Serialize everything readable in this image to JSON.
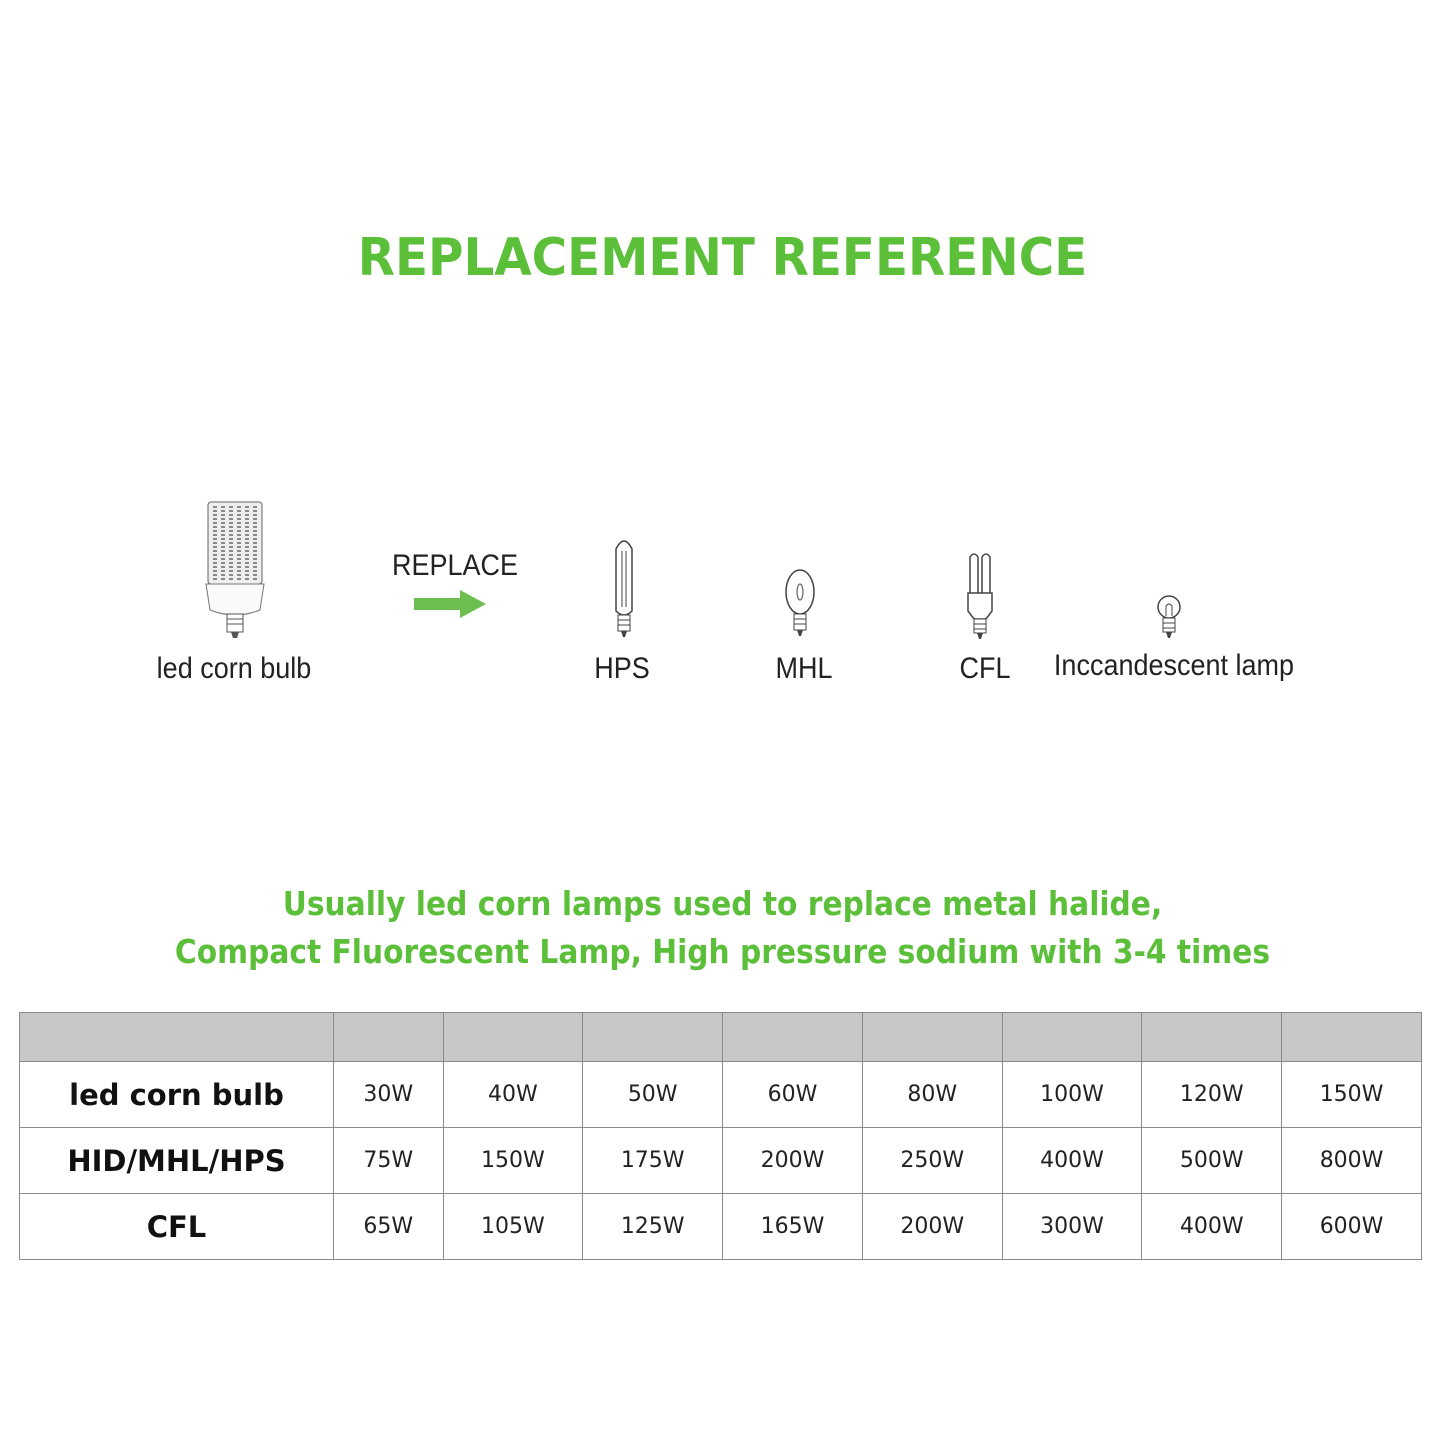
{
  "title": "REPLACEMENT REFERENCE",
  "colors": {
    "accent": "#5bbf3a",
    "header_bg": "#c8c8c8"
  },
  "diagram": {
    "source": {
      "label": "led corn bulb",
      "icon": "led-corn-bulb-icon"
    },
    "action": {
      "label": "REPLACE",
      "icon": "arrow-right-icon"
    },
    "targets": [
      {
        "label": "HPS",
        "icon": "hps-lamp-icon"
      },
      {
        "label": "MHL",
        "icon": "mhl-lamp-icon"
      },
      {
        "label": "CFL",
        "icon": "cfl-lamp-icon"
      },
      {
        "label": "Inccandescent lamp",
        "icon": "incandescent-bulb-icon"
      }
    ]
  },
  "subtitle": {
    "line1": "Usually led corn lamps used to replace metal halide,",
    "line2": "Compact Fluorescent Lamp, High pressure sodium with 3-4 times"
  },
  "table": {
    "rows": [
      {
        "label": "led corn bulb",
        "values": [
          "30W",
          "40W",
          "50W",
          "60W",
          "80W",
          "100W",
          "120W",
          "150W"
        ]
      },
      {
        "label": "HID/MHL/HPS",
        "values": [
          "75W",
          "150W",
          "175W",
          "200W",
          "250W",
          "400W",
          "500W",
          "800W"
        ]
      },
      {
        "label": "CFL",
        "values": [
          "65W",
          "105W",
          "125W",
          "165W",
          "200W",
          "300W",
          "400W",
          "600W"
        ]
      }
    ]
  }
}
